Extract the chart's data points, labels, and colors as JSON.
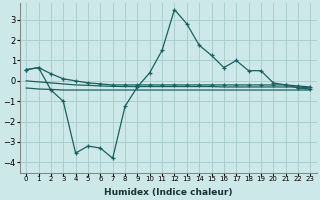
{
  "xlabel": "Humidex (Indice chaleur)",
  "x": [
    0,
    1,
    2,
    3,
    4,
    5,
    6,
    7,
    8,
    9,
    10,
    11,
    12,
    13,
    14,
    15,
    16,
    17,
    18,
    19,
    20,
    21,
    22,
    23
  ],
  "line_upper": [
    0.55,
    0.65,
    0.35,
    0.1,
    0.0,
    -0.1,
    -0.15,
    -0.2,
    -0.2,
    -0.2,
    -0.2,
    -0.2,
    -0.2,
    -0.2,
    -0.2,
    -0.2,
    -0.2,
    -0.2,
    -0.2,
    -0.2,
    -0.2,
    -0.2,
    -0.25,
    -0.3
  ],
  "line_flat1": [
    0.0,
    -0.05,
    -0.1,
    -0.15,
    -0.2,
    -0.22,
    -0.25,
    -0.27,
    -0.28,
    -0.28,
    -0.28,
    -0.28,
    -0.28,
    -0.28,
    -0.28,
    -0.28,
    -0.3,
    -0.3,
    -0.3,
    -0.3,
    -0.3,
    -0.3,
    -0.3,
    -0.35
  ],
  "line_flat2": [
    -0.35,
    -0.4,
    -0.42,
    -0.45,
    -0.45,
    -0.45,
    -0.45,
    -0.45,
    -0.45,
    -0.45,
    -0.45,
    -0.45,
    -0.45,
    -0.45,
    -0.45,
    -0.45,
    -0.45,
    -0.45,
    -0.45,
    -0.45,
    -0.45,
    -0.45,
    -0.45,
    -0.45
  ],
  "line_jagged": [
    0.55,
    0.65,
    -0.45,
    -1.0,
    -3.55,
    -3.2,
    -3.3,
    -3.8,
    -1.25,
    -0.3,
    0.4,
    1.5,
    3.5,
    2.8,
    1.75,
    1.25,
    0.65,
    1.0,
    0.5,
    0.5,
    -0.1,
    -0.2,
    -0.35,
    -0.4
  ],
  "bg_color": "#cde8e8",
  "grid_color": "#aacfcf",
  "line_color": "#1a6060",
  "ylim": [
    -4.5,
    3.8
  ],
  "yticks": [
    -4,
    -3,
    -2,
    -1,
    0,
    1,
    2,
    3
  ],
  "figsize": [
    3.2,
    2.0
  ],
  "dpi": 100
}
